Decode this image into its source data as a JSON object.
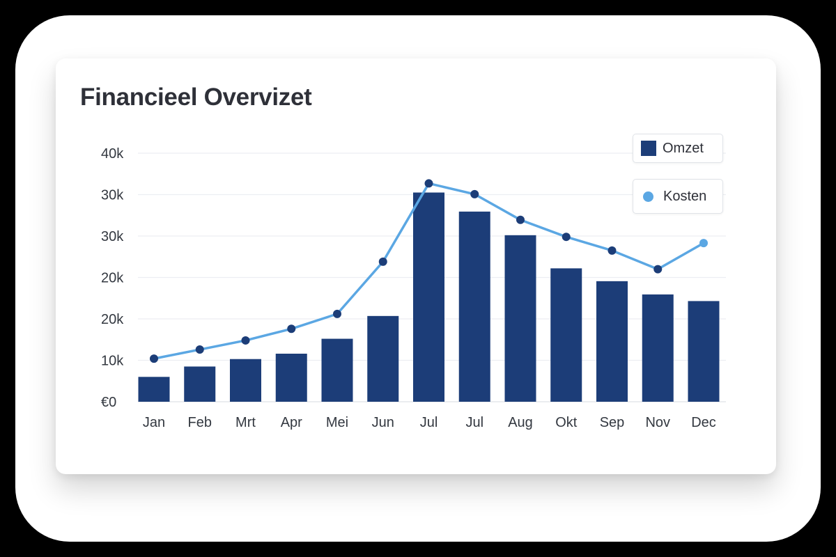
{
  "chart_data": {
    "type": "bar",
    "title": "Financieel Overvizet",
    "categories": [
      "Jan",
      "Feb",
      "Mrt",
      "Apr",
      "Mei",
      "Jun",
      "Jul",
      "Jul",
      "Aug",
      "Okt",
      "Sep",
      "Nov",
      "Dec"
    ],
    "y_tick_labels": [
      "€0",
      "10k",
      "20k",
      "20k",
      "30k",
      "30k",
      "40k"
    ],
    "ylim": [
      0,
      60
    ],
    "grid": true,
    "legend_position": "top-right",
    "series": [
      {
        "name": "Omzet",
        "type": "bar",
        "color": "#1c3d78",
        "values": [
          6,
          8.5,
          10.3,
          11.6,
          15.2,
          20.7,
          50.5,
          45.9,
          40.2,
          32.2,
          29.1,
          25.9,
          24.3
        ]
      },
      {
        "name": "Kosten",
        "type": "line",
        "color": "#5ba7e3",
        "marker_color": "#1c3d78",
        "values": [
          10.4,
          12.6,
          14.8,
          17.6,
          21.2,
          33.8,
          52.7,
          50.1,
          43.9,
          39.8,
          36.5,
          32.0,
          38.3
        ]
      }
    ]
  }
}
